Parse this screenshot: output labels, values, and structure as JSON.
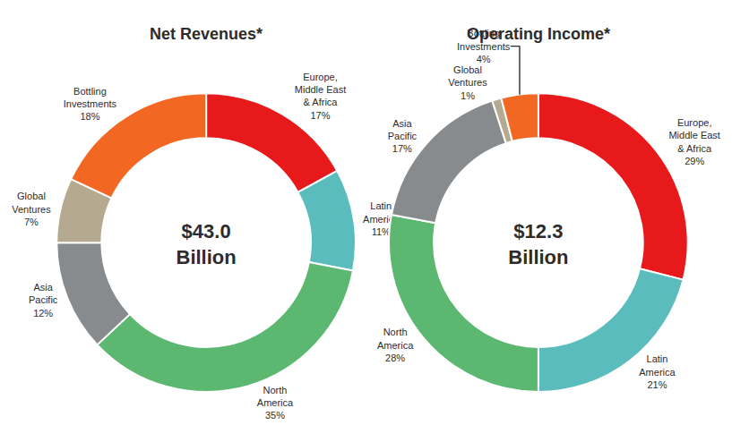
{
  "chart_data": [
    {
      "type": "donut",
      "title": "Net Revenues*",
      "annotations": [
        "$43.0",
        "Billion"
      ],
      "categories": [
        "Europe,\nMiddle East\n& Africa",
        "Latin\nAmerica",
        "North\nAmerica",
        "Asia\nPacific",
        "Global\nVentures",
        "Bottling\nInvestments"
      ],
      "values": [
        17,
        11,
        35,
        12,
        7,
        18
      ],
      "value_labels": [
        "17%",
        "11%",
        "35%",
        "12%",
        "7%",
        "18%"
      ],
      "colors": [
        "#e8191a",
        "#5bbcbe",
        "#5cb870",
        "#888b8d",
        "#b5a990",
        "#f26722"
      ]
    },
    {
      "type": "donut",
      "title": "Operating Income*",
      "annotations": [
        "$12.3",
        "Billion"
      ],
      "categories": [
        "Europe,\nMiddle East\n& Africa",
        "Latin\nAmerica",
        "North\nAmerica",
        "Asia\nPacific",
        "Global\nVentures",
        "Bottling\nInvestments"
      ],
      "values": [
        29,
        21,
        28,
        17,
        1,
        4
      ],
      "value_labels": [
        "29%",
        "21%",
        "28%",
        "17%",
        "1%",
        "4%"
      ],
      "colors": [
        "#e8191a",
        "#5bbcbe",
        "#5cb870",
        "#888b8d",
        "#b5a990",
        "#f26722"
      ]
    }
  ]
}
